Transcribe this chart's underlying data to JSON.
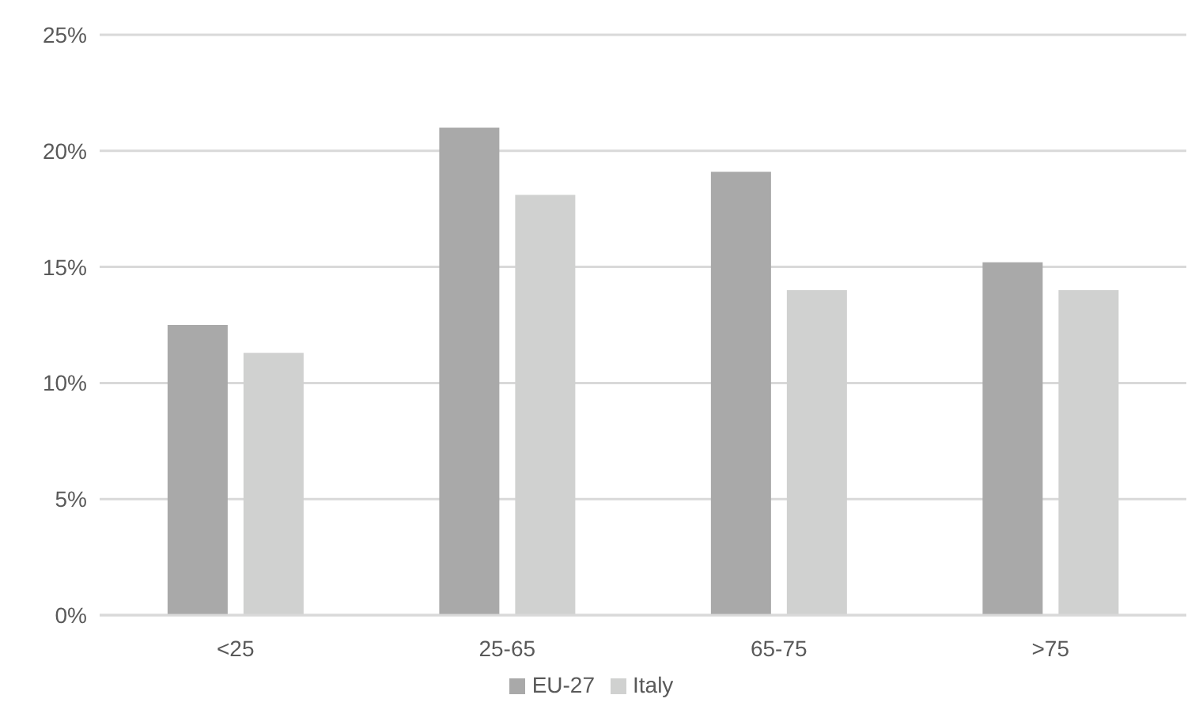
{
  "chart_data": {
    "type": "bar",
    "categories": [
      "<25",
      "25-65",
      "65-75",
      ">75"
    ],
    "series": [
      {
        "name": "EU-27",
        "color": "#a9a9a9",
        "values": [
          12.5,
          21.0,
          19.1,
          15.2
        ]
      },
      {
        "name": "Italy",
        "color": "#d0d1d0",
        "values": [
          11.3,
          18.1,
          14.0,
          14.0
        ]
      }
    ],
    "ylim": [
      0,
      25
    ],
    "yticks": [
      {
        "value": 0,
        "label": "0%"
      },
      {
        "value": 5,
        "label": "5%"
      },
      {
        "value": 10,
        "label": "10%"
      },
      {
        "value": 15,
        "label": "15%"
      },
      {
        "value": 20,
        "label": "20%"
      },
      {
        "value": 25,
        "label": "25%"
      }
    ],
    "grid": "y",
    "legend": "bottom"
  }
}
